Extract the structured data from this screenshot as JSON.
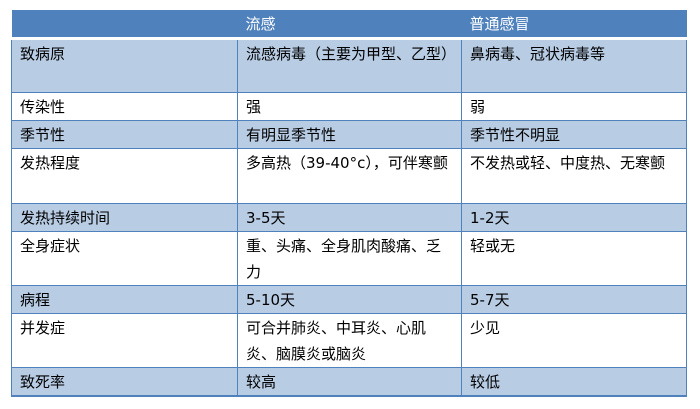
{
  "header": [
    "",
    "流感",
    "普通感冒"
  ],
  "rows": [
    [
      "致病原",
      "流感病毒（主要为甲型、乙型）",
      "鼻病毒、冠状病毒等"
    ],
    [
      "传染性",
      "强",
      "弱"
    ],
    [
      "季节性",
      "有明显季节性",
      "季节性不明显"
    ],
    [
      "发热程度",
      "多高热（39-40°c），可伴寒颤",
      "不发热或轻、中度热、无寒颤"
    ],
    [
      "发热持续时间",
      "3-5天",
      "1-2天"
    ],
    [
      "全身症状",
      "重、头痛、全身肌肉酸痛、乏力",
      "轻或无"
    ],
    [
      "病程",
      "5-10天",
      "5-7天"
    ],
    [
      "并发症",
      "可合并肺炎、中耳炎、心肌炎、脑膜炎或脑炎",
      "少见"
    ],
    [
      "致死率",
      "较高",
      "较低"
    ]
  ],
  "colors": {
    "header": "#4f81bd",
    "shaded_row": "#b8cce4",
    "border": "#4f81bd"
  }
}
